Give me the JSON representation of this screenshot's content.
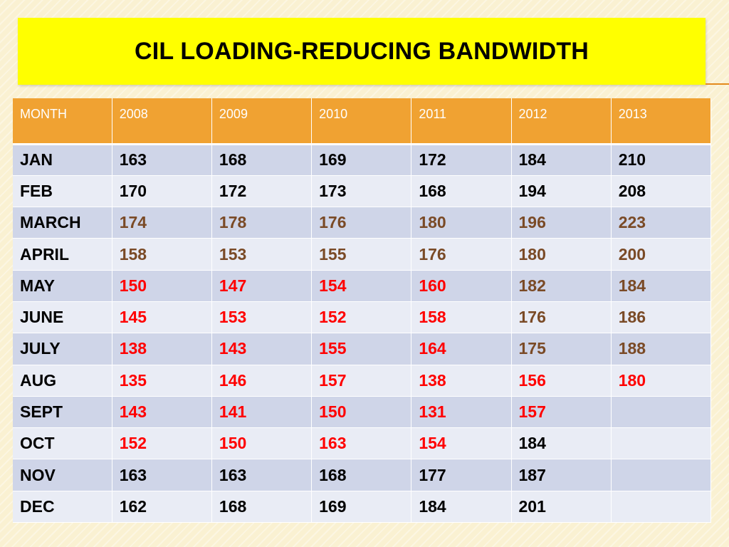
{
  "title": "CIL LOADING-REDUCING BANDWIDTH",
  "colors": {
    "title_bg": "#ffff00",
    "header_bg": "#f0a232",
    "row_dark": "#cfd5e8",
    "row_light": "#e9ecf5",
    "text_black": "#000000",
    "text_brown": "#7a4a26",
    "text_red": "#ff0000"
  },
  "table": {
    "headers": [
      "MONTH",
      "2008",
      "2009",
      "2010",
      "2011",
      "2012",
      "2013"
    ],
    "rows": [
      {
        "month": "JAN",
        "values": [
          "163",
          "168",
          "169",
          "172",
          "184",
          "210"
        ],
        "colors": [
          "black",
          "black",
          "black",
          "black",
          "black",
          "black"
        ]
      },
      {
        "month": "FEB",
        "values": [
          "170",
          "172",
          "173",
          "168",
          "194",
          "208"
        ],
        "colors": [
          "black",
          "black",
          "black",
          "black",
          "black",
          "black"
        ]
      },
      {
        "month": "MARCH",
        "values": [
          "174",
          "178",
          "176",
          "180",
          "196",
          "223"
        ],
        "colors": [
          "brown",
          "brown",
          "brown",
          "brown",
          "brown",
          "brown"
        ]
      },
      {
        "month": "APRIL",
        "values": [
          "158",
          "153",
          "155",
          "176",
          "180",
          "200"
        ],
        "colors": [
          "brown",
          "brown",
          "brown",
          "brown",
          "brown",
          "brown"
        ]
      },
      {
        "month": "MAY",
        "values": [
          "150",
          "147",
          "154",
          "160",
          "182",
          "184"
        ],
        "colors": [
          "red",
          "red",
          "red",
          "red",
          "brown",
          "brown"
        ]
      },
      {
        "month": "JUNE",
        "values": [
          "145",
          "153",
          "152",
          "158",
          "176",
          "186"
        ],
        "colors": [
          "red",
          "red",
          "red",
          "red",
          "brown",
          "brown"
        ]
      },
      {
        "month": "JULY",
        "values": [
          "138",
          "143",
          "155",
          "164",
          "175",
          "188"
        ],
        "colors": [
          "red",
          "red",
          "red",
          "red",
          "brown",
          "brown"
        ]
      },
      {
        "month": "AUG",
        "values": [
          "135",
          "146",
          "157",
          "138",
          "156",
          "180"
        ],
        "colors": [
          "red",
          "red",
          "red",
          "red",
          "red",
          "red"
        ]
      },
      {
        "month": "SEPT",
        "values": [
          "143",
          "141",
          "150",
          "131",
          "157",
          ""
        ],
        "colors": [
          "red",
          "red",
          "red",
          "red",
          "red",
          "black"
        ]
      },
      {
        "month": "OCT",
        "values": [
          "152",
          "150",
          "163",
          "154",
          "184",
          ""
        ],
        "colors": [
          "red",
          "red",
          "red",
          "red",
          "black",
          "black"
        ]
      },
      {
        "month": "NOV",
        "values": [
          "163",
          "163",
          "168",
          "177",
          "187",
          ""
        ],
        "colors": [
          "black",
          "black",
          "black",
          "black",
          "black",
          "black"
        ]
      },
      {
        "month": "DEC",
        "values": [
          "162",
          "168",
          "169",
          "184",
          "201",
          ""
        ],
        "colors": [
          "black",
          "black",
          "black",
          "black",
          "black",
          "black"
        ]
      }
    ]
  }
}
